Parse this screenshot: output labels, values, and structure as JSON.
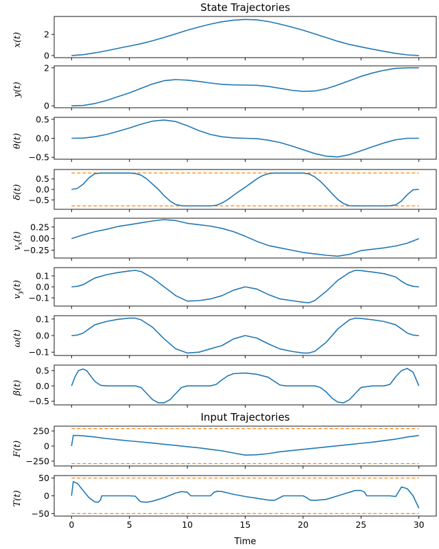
{
  "chart_data": {
    "type": "line",
    "titles": {
      "states": "State Trajectories",
      "inputs": "Input Trajectories"
    },
    "xlabel": "Time",
    "xlim": [
      -1.5,
      31.5
    ],
    "xticks": [
      0,
      5,
      10,
      15,
      20,
      25,
      30
    ],
    "colors": {
      "line": "#1f77b4",
      "bound": "#ff7f0e"
    },
    "panels": [
      {
        "ylabel": "x(t)",
        "ylim": [
          -0.2,
          3.7
        ],
        "yticks": [
          0,
          2
        ],
        "ytick_labels": [
          "0",
          "2"
        ],
        "series": [
          {
            "x": [
              0,
              1,
              2,
              3,
              4,
              5,
              6,
              7,
              8,
              9,
              10,
              11,
              12,
              13,
              14,
              15,
              16,
              17,
              18,
              19,
              20,
              21,
              22,
              23,
              24,
              25,
              26,
              27,
              28,
              29,
              30
            ],
            "y": [
              0,
              0.08,
              0.25,
              0.45,
              0.68,
              0.9,
              1.12,
              1.4,
              1.72,
              2.05,
              2.4,
              2.7,
              2.98,
              3.2,
              3.35,
              3.42,
              3.38,
              3.22,
              2.98,
              2.7,
              2.4,
              2.05,
              1.7,
              1.35,
              1.05,
              0.82,
              0.6,
              0.4,
              0.2,
              0.06,
              0
            ]
          }
        ]
      },
      {
        "ylabel": "y(t)",
        "ylim": [
          -0.1,
          2.1
        ],
        "yticks": [
          0,
          2
        ],
        "ytick_labels": [
          "0",
          "2"
        ],
        "series": [
          {
            "x": [
              0,
              1,
              2,
              3,
              4,
              5,
              6,
              7,
              8,
              9,
              10,
              11,
              12,
              13,
              14,
              15,
              16,
              17,
              18,
              19,
              20,
              21,
              22,
              23,
              24,
              25,
              26,
              27,
              28,
              29,
              30
            ],
            "y": [
              0,
              0.02,
              0.12,
              0.28,
              0.48,
              0.68,
              0.92,
              1.15,
              1.32,
              1.38,
              1.35,
              1.28,
              1.2,
              1.13,
              1.1,
              1.09,
              1.08,
              1.02,
              0.92,
              0.82,
              0.76,
              0.78,
              0.9,
              1.1,
              1.32,
              1.55,
              1.73,
              1.87,
              1.97,
              2.0,
              2.0
            ]
          }
        ]
      },
      {
        "ylabel": "θ(t)",
        "ylim": [
          -0.55,
          0.55
        ],
        "yticks": [
          0.5,
          0,
          -0.5
        ],
        "ytick_labels": [
          "0.5",
          "0.0",
          "−0.5"
        ],
        "series": [
          {
            "x": [
              0,
              1,
              2,
              3,
              4,
              5,
              6,
              7,
              8,
              9,
              10,
              11,
              12,
              13,
              14,
              15,
              16,
              17,
              18,
              19,
              20,
              21,
              22,
              23,
              24,
              25,
              26,
              27,
              28,
              29,
              30
            ],
            "y": [
              0,
              0.005,
              0.04,
              0.1,
              0.18,
              0.27,
              0.37,
              0.45,
              0.48,
              0.44,
              0.33,
              0.2,
              0.1,
              0.04,
              0.01,
              0,
              -0.01,
              -0.05,
              -0.11,
              -0.2,
              -0.3,
              -0.4,
              -0.47,
              -0.49,
              -0.43,
              -0.33,
              -0.22,
              -0.12,
              -0.04,
              0,
              0
            ]
          }
        ]
      },
      {
        "ylabel": "δ(t)",
        "ylim": [
          -0.95,
          0.95
        ],
        "yticks": [
          0.5,
          0,
          -0.5
        ],
        "ytick_labels": [
          "0.5",
          "0.0",
          "−0.5"
        ],
        "bounds": [
          0.785,
          -0.785
        ],
        "series": [
          {
            "x": [
              0,
              0.5,
              1,
              1.5,
              2,
              2.5,
              3,
              4,
              5,
              5.5,
              6,
              6.5,
              7,
              7.5,
              8,
              8.5,
              9,
              9.5,
              10,
              11,
              12,
              12.5,
              13,
              13.5,
              14,
              14.5,
              15,
              15.5,
              16,
              16.5,
              17,
              17.5,
              18,
              19,
              20,
              20.5,
              21,
              21.5,
              22,
              22.5,
              23,
              23.5,
              24,
              25,
              26,
              27,
              27.5,
              28,
              28.5,
              29,
              29.5,
              30
            ],
            "y": [
              0,
              0.05,
              0.25,
              0.55,
              0.75,
              0.78,
              0.78,
              0.78,
              0.78,
              0.76,
              0.68,
              0.5,
              0.25,
              0,
              -0.3,
              -0.55,
              -0.72,
              -0.78,
              -0.785,
              -0.785,
              -0.785,
              -0.76,
              -0.65,
              -0.48,
              -0.28,
              -0.08,
              0.1,
              0.3,
              0.5,
              0.66,
              0.75,
              0.78,
              0.78,
              0.78,
              0.78,
              0.74,
              0.6,
              0.38,
              0.1,
              -0.2,
              -0.48,
              -0.68,
              -0.78,
              -0.785,
              -0.785,
              -0.785,
              -0.78,
              -0.74,
              -0.55,
              -0.25,
              -0.02,
              0
            ]
          }
        ]
      },
      {
        "ylabel": "vx(t)",
        "ylim": [
          -0.42,
          0.44
        ],
        "yticks": [
          0.25,
          0,
          -0.25
        ],
        "ytick_labels": [
          "0.25",
          "0.00",
          "−0.25"
        ],
        "series": [
          {
            "x": [
              0,
              1,
              2,
              3,
              4,
              5,
              6,
              7,
              8,
              9,
              10,
              11,
              12,
              13,
              14,
              15,
              16,
              17,
              18,
              19,
              20,
              21,
              22,
              23,
              24,
              25,
              26,
              27,
              28,
              29,
              30
            ],
            "y": [
              0,
              0.08,
              0.15,
              0.2,
              0.26,
              0.3,
              0.34,
              0.38,
              0.41,
              0.39,
              0.33,
              0.3,
              0.27,
              0.22,
              0.15,
              0.05,
              -0.06,
              -0.15,
              -0.2,
              -0.25,
              -0.3,
              -0.33,
              -0.36,
              -0.38,
              -0.34,
              -0.26,
              -0.23,
              -0.2,
              -0.16,
              -0.1,
              0
            ]
          }
        ]
      },
      {
        "ylabel": "vy(t)",
        "ylim": [
          -0.175,
          0.175
        ],
        "yticks": [
          0.1,
          0,
          -0.1
        ],
        "ytick_labels": [
          "0.1",
          "0.0",
          "−0.1"
        ],
        "series": [
          {
            "x": [
              0,
              0.5,
              1,
              1.5,
              2,
              3,
              4,
              5,
              5.5,
              6,
              7,
              8,
              9,
              10,
              11,
              12,
              13,
              14,
              15,
              16,
              17,
              18,
              19,
              20,
              20.5,
              21,
              22,
              23,
              24,
              24.5,
              25,
              26,
              27,
              28,
              28.5,
              29,
              29.5,
              30
            ],
            "y": [
              0,
              0.005,
              0.02,
              0.05,
              0.08,
              0.11,
              0.13,
              0.145,
              0.15,
              0.14,
              0.08,
              0,
              -0.08,
              -0.13,
              -0.125,
              -0.11,
              -0.08,
              -0.03,
              0,
              -0.02,
              -0.07,
              -0.11,
              -0.125,
              -0.14,
              -0.145,
              -0.125,
              -0.04,
              0.06,
              0.13,
              0.15,
              0.148,
              0.135,
              0.12,
              0.09,
              0.05,
              0.02,
              0.005,
              0
            ]
          }
        ]
      },
      {
        "ylabel": "ω(t)",
        "ylim": [
          -0.12,
          0.12
        ],
        "yticks": [
          0.1,
          0,
          -0.1
        ],
        "ytick_labels": [
          "0.1",
          "0.0",
          "−0.1"
        ],
        "series": [
          {
            "x": [
              0,
              0.5,
              1,
              1.5,
              2,
              3,
              4,
              5,
              5.5,
              6,
              7,
              8,
              9,
              10,
              11,
              12,
              13,
              14,
              15,
              16,
              17,
              18,
              19,
              20,
              20.5,
              21,
              22,
              23,
              24,
              24.5,
              25,
              26,
              27,
              28,
              28.5,
              29,
              29.5,
              30
            ],
            "y": [
              0,
              0.003,
              0.015,
              0.04,
              0.065,
              0.085,
              0.098,
              0.105,
              0.105,
              0.095,
              0.05,
              -0.02,
              -0.08,
              -0.105,
              -0.1,
              -0.08,
              -0.06,
              -0.02,
              0,
              -0.015,
              -0.05,
              -0.08,
              -0.095,
              -0.105,
              -0.105,
              -0.095,
              -0.04,
              0.04,
              0.095,
              0.105,
              0.103,
              0.095,
              0.085,
              0.065,
              0.04,
              0.015,
              0.003,
              0
            ]
          }
        ]
      },
      {
        "ylabel": "β(t)",
        "ylim": [
          -0.62,
          0.68
        ],
        "yticks": [
          0.5,
          0,
          -0.5
        ],
        "ytick_labels": [
          "0.5",
          "0.0",
          "−0.5"
        ],
        "series": [
          {
            "x": [
              0,
              0.3,
              0.6,
              1,
              1.3,
              1.6,
              2,
              2.5,
              3,
              4,
              5,
              5.5,
              6,
              6.5,
              7,
              7.5,
              8,
              8.5,
              9,
              9.5,
              10,
              11,
              12,
              12.5,
              13,
              13.5,
              14,
              15,
              16,
              17,
              17.5,
              18,
              18.5,
              19,
              20,
              21,
              21.5,
              22,
              22.5,
              23,
              23.5,
              24,
              24.5,
              25,
              26,
              27,
              27.5,
              28,
              28.5,
              29,
              29.5,
              30
            ],
            "y": [
              0,
              0.3,
              0.5,
              0.55,
              0.5,
              0.35,
              0.15,
              0.02,
              0,
              0,
              0,
              0,
              -0.05,
              -0.25,
              -0.45,
              -0.55,
              -0.55,
              -0.45,
              -0.25,
              -0.05,
              0,
              0,
              0,
              0.05,
              0.2,
              0.33,
              0.4,
              0.42,
              0.38,
              0.28,
              0.15,
              0.03,
              0,
              0,
              0,
              0,
              -0.05,
              -0.2,
              -0.4,
              -0.53,
              -0.55,
              -0.45,
              -0.25,
              -0.05,
              0,
              0,
              0.05,
              0.3,
              0.5,
              0.57,
              0.45,
              0
            ]
          }
        ]
      },
      {
        "title": "Input Trajectories",
        "ylabel": "F(t)",
        "ylim": [
          -330,
          330
        ],
        "yticks": [
          250,
          0,
          -250
        ],
        "ytick_labels": [
          "250",
          "0",
          "−250"
        ],
        "bounds": [
          290,
          -290
        ],
        "series": [
          {
            "x": [
              0,
              0.15,
              0.5,
              1,
              2,
              3,
              4,
              5,
              6,
              7,
              8,
              9,
              10,
              11,
              12,
              13,
              14,
              15,
              16,
              17,
              18,
              19,
              20,
              21,
              22,
              23,
              24,
              25,
              26,
              27,
              28,
              29,
              30
            ],
            "y": [
              0,
              175,
              175,
              170,
              150,
              125,
              105,
              85,
              68,
              50,
              30,
              10,
              -10,
              -30,
              -55,
              -80,
              -115,
              -150,
              -145,
              -125,
              -95,
              -75,
              -55,
              -35,
              -15,
              5,
              25,
              45,
              65,
              90,
              115,
              150,
              175
            ]
          }
        ]
      },
      {
        "ylabel": "T(t)",
        "ylim": [
          -57,
          57
        ],
        "yticks": [
          50,
          0,
          -50
        ],
        "ytick_labels": [
          "50",
          "0",
          "−50"
        ],
        "bounds": [
          50,
          -50
        ],
        "series": [
          {
            "x": [
              0,
              0.15,
              0.5,
              1,
              1.5,
              2,
              2.3,
              2.5,
              2.6,
              3,
              4,
              5,
              5.5,
              5.8,
              6,
              6.5,
              7,
              8,
              9,
              9.5,
              10,
              10.3,
              10.5,
              11,
              12,
              12.3,
              12.6,
              13,
              13.5,
              14,
              15,
              16,
              17,
              17.5,
              18,
              18.3,
              19,
              20,
              20.3,
              20.6,
              21,
              22,
              23,
              24,
              24.5,
              25,
              25.3,
              25.5,
              26,
              27,
              27.5,
              28,
              28.5,
              29,
              29.5,
              30
            ],
            "y": [
              0,
              40,
              35,
              15,
              -5,
              -17,
              -18,
              -12,
              0,
              0,
              0,
              0,
              -1,
              -12,
              -17,
              -18,
              -15,
              -5,
              8,
              12,
              10,
              0,
              0,
              0,
              0,
              10,
              13,
              12,
              8,
              4,
              -2,
              -7,
              -12,
              -13,
              -5,
              0,
              0,
              0,
              -5,
              -12,
              -13,
              -10,
              0,
              10,
              15,
              15,
              10,
              0,
              0,
              0,
              0,
              -2,
              25,
              20,
              0,
              -35
            ]
          }
        ]
      }
    ]
  }
}
